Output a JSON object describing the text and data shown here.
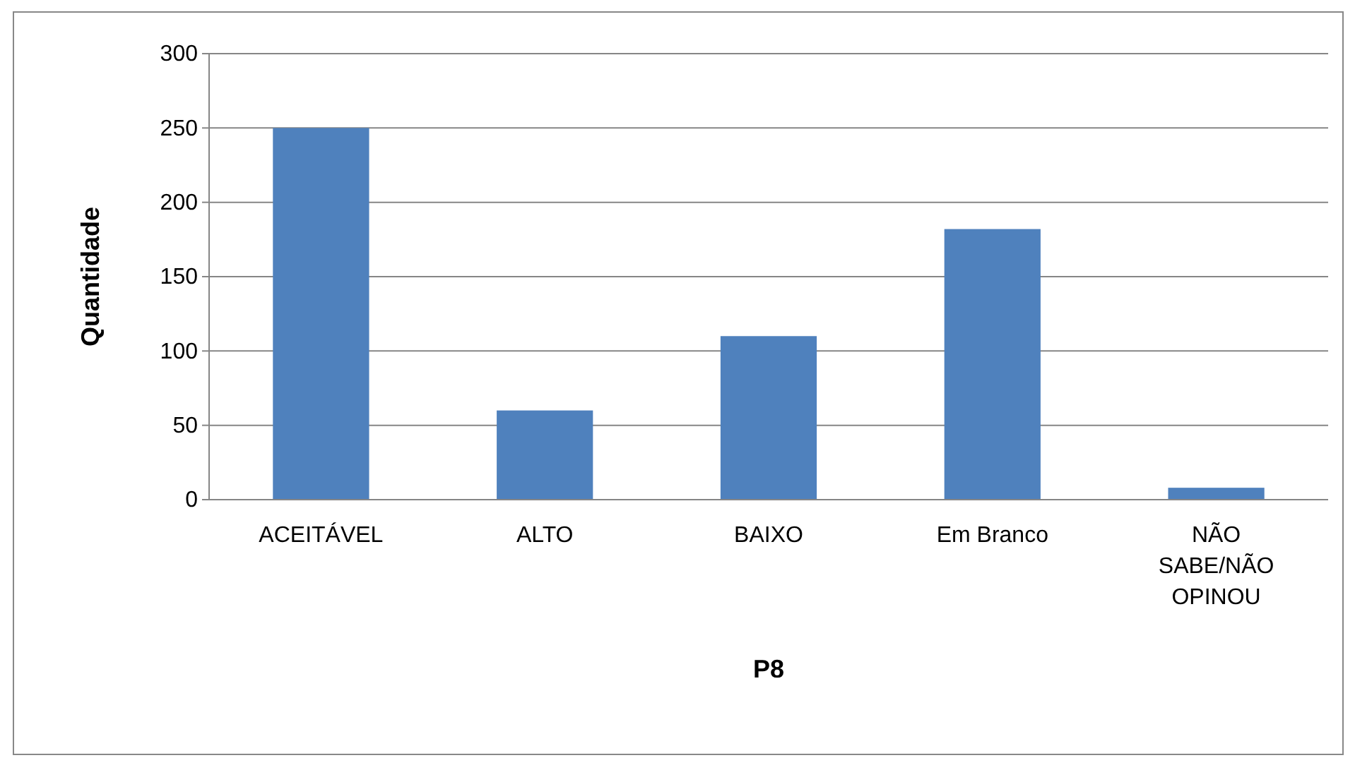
{
  "chart_data": {
    "type": "bar",
    "xlabel": "P8",
    "ylabel": "Quantidade",
    "categories": [
      "ACEITÁVEL",
      "ALTO",
      "BAIXO",
      "Em Branco",
      "NÃO SABE/NÃO OPINOU"
    ],
    "values": [
      250,
      60,
      110,
      182,
      8
    ],
    "color": "#4f81bd",
    "ylim": [
      0,
      300
    ],
    "yticks": [
      0,
      50,
      100,
      150,
      200,
      250,
      300
    ],
    "grid": "y"
  }
}
